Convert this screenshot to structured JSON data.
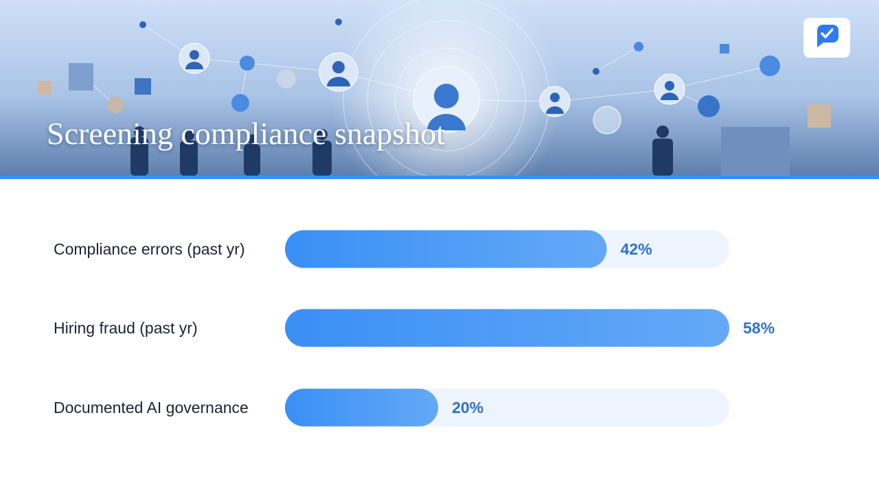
{
  "chart_data": {
    "type": "bar",
    "orientation": "horizontal",
    "title": "Screening compliance snapshot",
    "categories": [
      "Compliance errors (past yr)",
      "Hiring fraud (past yr)",
      "Documented AI governance"
    ],
    "values": [
      42,
      58,
      20
    ],
    "value_labels": [
      "42%",
      "58%",
      "20%"
    ],
    "xlim": [
      0,
      58
    ],
    "color": "#3a8ff5"
  }
}
